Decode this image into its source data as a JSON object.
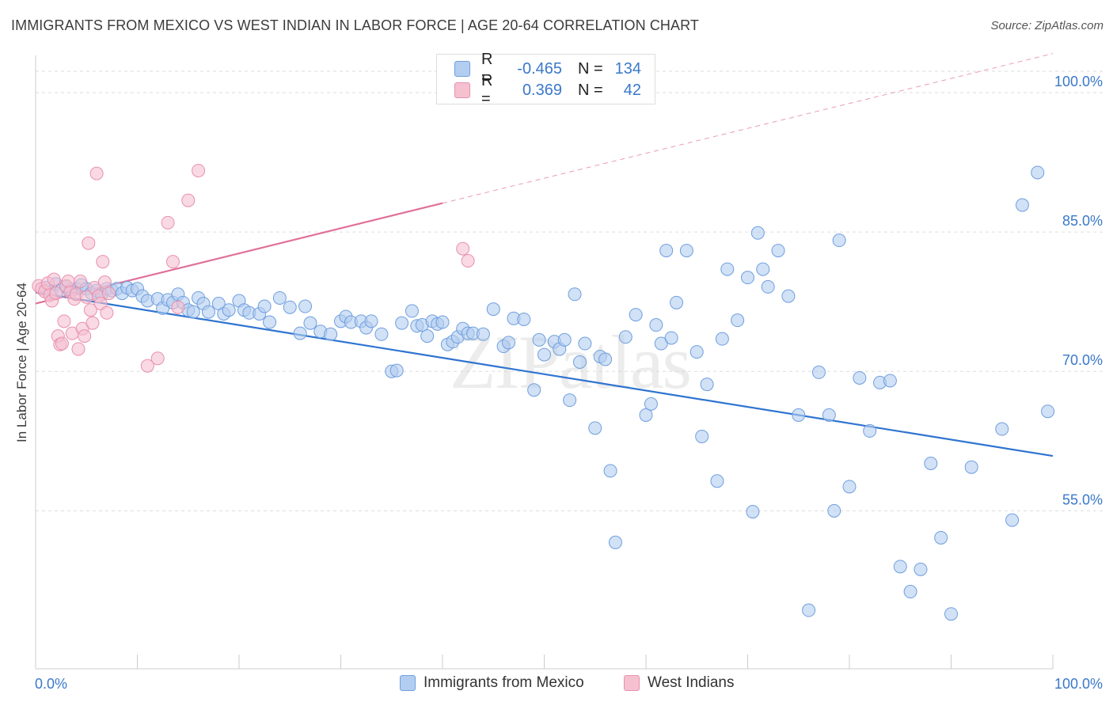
{
  "title": "IMMIGRANTS FROM MEXICO VS WEST INDIAN IN LABOR FORCE | AGE 20-64 CORRELATION CHART",
  "source": "Source: ZipAtlas.com",
  "watermark": "ZIPatlas",
  "colors": {
    "blue_fill": "#b3cdf0",
    "blue_stroke": "#6f9fde",
    "blue_line": "#2f74d0",
    "pink_fill": "#f5c0d0",
    "pink_stroke": "#e891ae",
    "pink_line": "#e0709a",
    "axis_text": "#3a78c9",
    "grid": "#dddddd"
  },
  "legend": {
    "rows": [
      {
        "r_label": "R =",
        "r_value": "-0.465",
        "n_label": "N =",
        "n_value": "134"
      },
      {
        "r_label": "R =",
        "r_value": "0.369",
        "n_label": "N =",
        "n_value": "42"
      }
    ],
    "placement": "top-center"
  },
  "bottom_legend": [
    "Immigrants from Mexico",
    "West Indians"
  ],
  "chart_data": {
    "type": "scatter",
    "title": "IMMIGRANTS FROM MEXICO VS WEST INDIAN IN LABOR FORCE | AGE 20-64 CORRELATION CHART",
    "xlabel": "",
    "ylabel": "In Labor Force | Age 20-64",
    "xlim": [
      0,
      100
    ],
    "ylim": [
      38,
      104
    ],
    "x_tick_labels": [
      "0.0%",
      "100.0%"
    ],
    "y_ticks": [
      55,
      70,
      85,
      100
    ],
    "y_tick_labels": [
      "55.0%",
      "70.0%",
      "85.0%",
      "100.0%"
    ],
    "grid": true,
    "series": [
      {
        "name": "Immigrants from Mexico",
        "color": "#6f9fde",
        "trend": {
          "x": [
            0,
            100
          ],
          "y": [
            78.5,
            60.9
          ]
        },
        "points": [
          [
            1.0,
            79.0
          ],
          [
            1.5,
            78.5
          ],
          [
            2.0,
            79.4
          ],
          [
            2.5,
            78.7
          ],
          [
            3.0,
            79.1
          ],
          [
            3.5,
            78.8
          ],
          [
            4.0,
            78.9
          ],
          [
            4.5,
            79.3
          ],
          [
            5.0,
            78.9
          ],
          [
            5.5,
            78.4
          ],
          [
            6.0,
            78.7
          ],
          [
            6.5,
            78.3
          ],
          [
            7.0,
            78.9
          ],
          [
            7.5,
            78.7
          ],
          [
            8.0,
            78.9
          ],
          [
            8.5,
            78.4
          ],
          [
            9.0,
            79.0
          ],
          [
            9.5,
            78.7
          ],
          [
            10.0,
            78.9
          ],
          [
            10.5,
            78.1
          ],
          [
            11.0,
            77.6
          ],
          [
            12.0,
            77.8
          ],
          [
            12.5,
            76.8
          ],
          [
            13.0,
            77.7
          ],
          [
            13.5,
            77.4
          ],
          [
            14.0,
            78.3
          ],
          [
            14.5,
            77.4
          ],
          [
            15.0,
            76.6
          ],
          [
            15.5,
            76.4
          ],
          [
            16.0,
            77.9
          ],
          [
            16.5,
            77.3
          ],
          [
            17.0,
            76.4
          ],
          [
            18.0,
            77.3
          ],
          [
            18.5,
            76.2
          ],
          [
            19.0,
            76.6
          ],
          [
            20.0,
            77.6
          ],
          [
            20.5,
            76.6
          ],
          [
            21.0,
            76.3
          ],
          [
            22.0,
            76.2
          ],
          [
            22.5,
            77.0
          ],
          [
            23.0,
            75.3
          ],
          [
            24.0,
            77.9
          ],
          [
            25.0,
            76.9
          ],
          [
            26.0,
            74.1
          ],
          [
            26.5,
            77.0
          ],
          [
            27.0,
            75.2
          ],
          [
            28.0,
            74.3
          ],
          [
            29.0,
            74.0
          ],
          [
            30.0,
            75.4
          ],
          [
            30.5,
            75.9
          ],
          [
            31.0,
            75.3
          ],
          [
            32.0,
            75.4
          ],
          [
            32.5,
            74.7
          ],
          [
            33.0,
            75.4
          ],
          [
            34.0,
            74.0
          ],
          [
            35.0,
            70.0
          ],
          [
            35.5,
            70.1
          ],
          [
            36.0,
            75.2
          ],
          [
            37.0,
            76.5
          ],
          [
            37.5,
            74.9
          ],
          [
            38.0,
            75.0
          ],
          [
            38.5,
            73.8
          ],
          [
            39.0,
            75.4
          ],
          [
            39.5,
            75.1
          ],
          [
            40.0,
            75.3
          ],
          [
            40.5,
            72.9
          ],
          [
            41.0,
            73.2
          ],
          [
            41.5,
            73.7
          ],
          [
            42.0,
            74.6
          ],
          [
            42.5,
            74.1
          ],
          [
            43.0,
            74.1
          ],
          [
            44.0,
            74.0
          ],
          [
            45.0,
            76.7
          ],
          [
            46.0,
            72.7
          ],
          [
            46.5,
            73.1
          ],
          [
            47.0,
            75.7
          ],
          [
            48.0,
            75.6
          ],
          [
            49.0,
            68.0
          ],
          [
            49.5,
            73.4
          ],
          [
            50.0,
            71.8
          ],
          [
            51.0,
            73.2
          ],
          [
            51.5,
            72.4
          ],
          [
            52.0,
            73.4
          ],
          [
            52.5,
            66.9
          ],
          [
            53.0,
            78.3
          ],
          [
            53.5,
            71.0
          ],
          [
            54.0,
            73.0
          ],
          [
            55.0,
            63.9
          ],
          [
            55.5,
            71.6
          ],
          [
            56.0,
            71.3
          ],
          [
            56.5,
            59.3
          ],
          [
            57.0,
            51.6
          ],
          [
            58.0,
            73.7
          ],
          [
            59.0,
            76.1
          ],
          [
            60.0,
            65.3
          ],
          [
            60.5,
            66.5
          ],
          [
            61.0,
            75.0
          ],
          [
            61.5,
            73.0
          ],
          [
            62.0,
            83.0
          ],
          [
            62.5,
            73.6
          ],
          [
            63.0,
            77.4
          ],
          [
            64.0,
            83.0
          ],
          [
            65.0,
            72.1
          ],
          [
            65.5,
            63.0
          ],
          [
            66.0,
            68.6
          ],
          [
            67.0,
            58.2
          ],
          [
            67.5,
            73.5
          ],
          [
            68.0,
            81.0
          ],
          [
            69.0,
            75.5
          ],
          [
            70.0,
            80.1
          ],
          [
            70.5,
            54.9
          ],
          [
            71.0,
            84.9
          ],
          [
            71.5,
            81.0
          ],
          [
            72.0,
            79.1
          ],
          [
            73.0,
            83.0
          ],
          [
            74.0,
            78.1
          ],
          [
            75.0,
            65.3
          ],
          [
            76.0,
            44.3
          ],
          [
            77.0,
            69.9
          ],
          [
            78.0,
            65.3
          ],
          [
            78.5,
            55.0
          ],
          [
            79.0,
            84.1
          ],
          [
            80.0,
            57.6
          ],
          [
            81.0,
            69.3
          ],
          [
            82.0,
            63.6
          ],
          [
            83.0,
            68.8
          ],
          [
            84.0,
            69.0
          ],
          [
            85.0,
            49.0
          ],
          [
            86.0,
            46.3
          ],
          [
            87.0,
            48.7
          ],
          [
            88.0,
            60.1
          ],
          [
            89.0,
            52.1
          ],
          [
            90.0,
            43.9
          ],
          [
            92.0,
            59.7
          ],
          [
            95.0,
            63.8
          ],
          [
            96.0,
            54.0
          ],
          [
            97.0,
            87.9
          ],
          [
            98.5,
            91.4
          ],
          [
            99.5,
            65.7
          ]
        ]
      },
      {
        "name": "West Indians",
        "color": "#e891ae",
        "trend": {
          "x": [
            0,
            40
          ],
          "y": [
            77.3,
            88.1
          ]
        },
        "trend_dashed": {
          "x": [
            40,
            100
          ],
          "y": [
            88.1,
            104.2
          ]
        },
        "points": [
          [
            0.3,
            79.2
          ],
          [
            0.6,
            78.9
          ],
          [
            0.9,
            78.6
          ],
          [
            1.2,
            79.5
          ],
          [
            1.4,
            78.2
          ],
          [
            1.6,
            77.6
          ],
          [
            1.8,
            79.9
          ],
          [
            2.0,
            78.4
          ],
          [
            2.2,
            73.8
          ],
          [
            2.4,
            72.9
          ],
          [
            2.6,
            73.0
          ],
          [
            2.8,
            75.4
          ],
          [
            3.0,
            79.2
          ],
          [
            3.2,
            79.7
          ],
          [
            3.4,
            78.5
          ],
          [
            3.6,
            74.1
          ],
          [
            3.8,
            77.8
          ],
          [
            4.0,
            78.3
          ],
          [
            4.2,
            72.4
          ],
          [
            4.4,
            79.7
          ],
          [
            4.6,
            74.6
          ],
          [
            4.8,
            73.8
          ],
          [
            5.0,
            78.0
          ],
          [
            5.2,
            83.8
          ],
          [
            5.4,
            76.6
          ],
          [
            5.6,
            75.2
          ],
          [
            5.8,
            79.0
          ],
          [
            6.0,
            91.3
          ],
          [
            6.2,
            78.1
          ],
          [
            6.4,
            77.3
          ],
          [
            6.6,
            81.8
          ],
          [
            6.8,
            79.6
          ],
          [
            7.0,
            76.3
          ],
          [
            7.2,
            78.4
          ],
          [
            11.0,
            70.6
          ],
          [
            12.0,
            71.4
          ],
          [
            13.0,
            86.0
          ],
          [
            13.5,
            81.8
          ],
          [
            14.0,
            76.9
          ],
          [
            15.0,
            88.4
          ],
          [
            16.0,
            91.6
          ],
          [
            42.0,
            83.2
          ],
          [
            42.5,
            81.9
          ]
        ]
      }
    ]
  }
}
